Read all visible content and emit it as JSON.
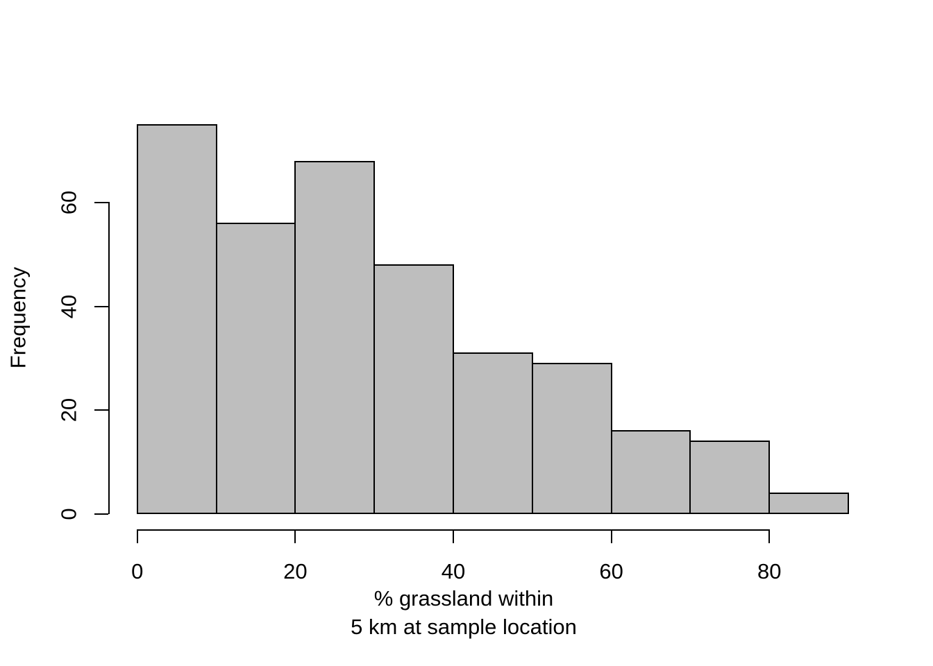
{
  "chart_data": {
    "type": "bar",
    "subtype": "histogram",
    "title": "",
    "ylabel": "Frequency",
    "xlabel_lines": [
      "% grassland within",
      "5 km at sample location"
    ],
    "bin_edges": [
      0,
      10,
      20,
      30,
      40,
      50,
      60,
      70,
      80,
      90
    ],
    "counts": [
      75,
      56,
      68,
      48,
      31,
      29,
      16,
      14,
      4
    ],
    "x_ticks": [
      0,
      20,
      40,
      60,
      80
    ],
    "y_ticks": [
      0,
      20,
      40,
      60
    ],
    "xlim": [
      0,
      90
    ],
    "ylim": [
      0,
      75
    ],
    "grid": "off",
    "legend": "none",
    "colors": {
      "bar_fill": "#BEBEBE",
      "bar_border": "#000000",
      "axis": "#000000",
      "text": "#000000",
      "background": "#FFFFFF"
    }
  }
}
